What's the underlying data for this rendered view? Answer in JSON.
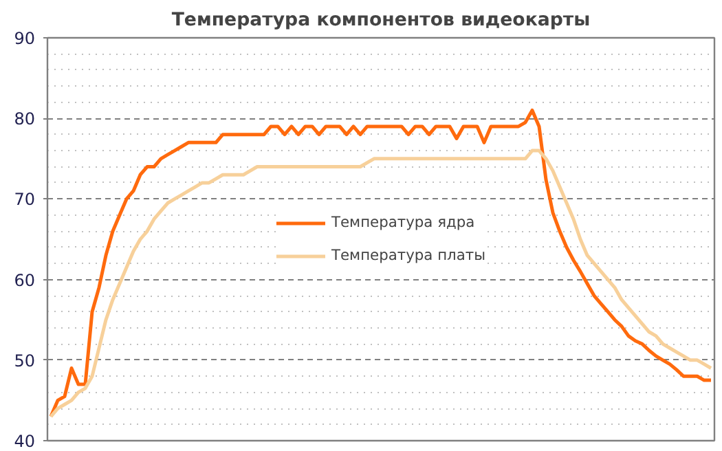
{
  "chart_data": {
    "type": "line",
    "title": "Температура компонентов видеокарты",
    "categories": [
      null,
      null,
      null,
      null,
      null,
      null,
      null,
      null,
      null,
      null,
      null,
      null,
      null,
      null,
      null,
      null,
      null,
      null,
      null,
      null,
      null,
      null,
      null,
      null,
      null,
      null,
      null,
      null,
      null,
      null,
      null,
      null,
      null,
      null,
      null,
      null,
      null,
      null,
      null,
      null,
      null,
      null,
      null,
      null,
      null,
      null,
      null,
      null,
      null,
      null,
      null,
      null,
      null,
      null,
      null,
      null,
      null,
      null,
      null,
      null,
      null,
      null,
      null,
      null,
      null,
      null,
      null,
      null,
      null,
      null,
      null,
      null,
      null,
      null,
      null,
      null,
      null,
      null,
      null,
      null,
      null,
      null,
      null,
      null,
      null,
      null,
      null,
      null,
      null,
      null,
      null,
      null,
      null,
      null,
      null,
      null,
      null
    ],
    "series": [
      {
        "name": "Температура ядра",
        "color": "#ff6a0d",
        "values": [
          43,
          45,
          45.5,
          49,
          47,
          47,
          56,
          59,
          63,
          66,
          68,
          70,
          71,
          73,
          74,
          74,
          75,
          75.5,
          76,
          76.5,
          77,
          77,
          77,
          77,
          77,
          78,
          78,
          78,
          78,
          78,
          78,
          78,
          79,
          79,
          78,
          79,
          78,
          79,
          79,
          78,
          79,
          79,
          79,
          78,
          79,
          78,
          79,
          79,
          79,
          79,
          79,
          79,
          78,
          79,
          79,
          78,
          79,
          79,
          79,
          77.5,
          79,
          79,
          79,
          77,
          79,
          79,
          79,
          79,
          79,
          79.5,
          81,
          79,
          72.4,
          68.3,
          66,
          64,
          62.4,
          61,
          59.5,
          58,
          57,
          56,
          55,
          54.2,
          53,
          52.4,
          52,
          51.2,
          50.5,
          50,
          49.5,
          48.8,
          48,
          48,
          48,
          47.5,
          47.5
        ]
      },
      {
        "name": "Температура платы",
        "color": "#f7d09a",
        "values": [
          43,
          44,
          44.5,
          45,
          46,
          46.5,
          48,
          51.5,
          55,
          57.5,
          59.5,
          61.5,
          63.5,
          65,
          66,
          67.5,
          68.5,
          69.5,
          70,
          70.5,
          71,
          71.5,
          72,
          72,
          72.5,
          73,
          73,
          73,
          73,
          73.5,
          74,
          74,
          74,
          74,
          74,
          74,
          74,
          74,
          74,
          74,
          74,
          74,
          74,
          74,
          74,
          74,
          74.5,
          75,
          75,
          75,
          75,
          75,
          75,
          75,
          75,
          75,
          75,
          75,
          75,
          75,
          75,
          75,
          75,
          75,
          75,
          75,
          75,
          75,
          75,
          75,
          76,
          76,
          75,
          73.5,
          71.5,
          69.5,
          67.5,
          65,
          63,
          62,
          61,
          60,
          59,
          57.5,
          56.5,
          55.5,
          54.5,
          53.5,
          53,
          52,
          51.5,
          51,
          50.5,
          50,
          50,
          49.5,
          49
        ]
      }
    ],
    "ylim": [
      40,
      90
    ],
    "yticks": [
      40,
      50,
      60,
      70,
      80,
      90
    ],
    "grid": "y",
    "legend": "center",
    "tick_labels": "y",
    "line_style": "solid",
    "marker": "none"
  }
}
